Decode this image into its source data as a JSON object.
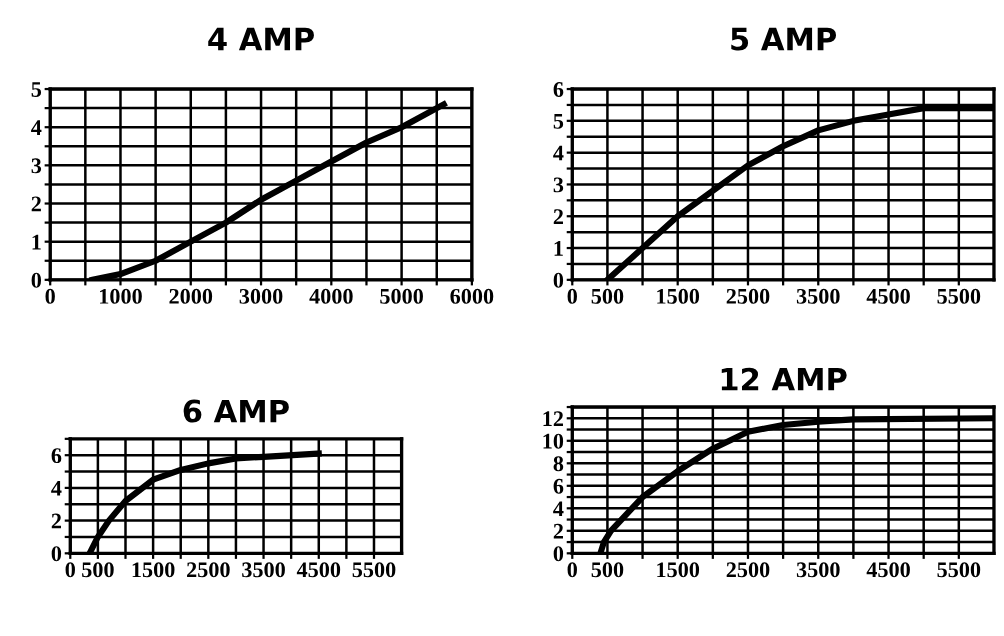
{
  "chart_data": [
    {
      "type": "line",
      "title": "4 AMP",
      "grid": true,
      "xlim": [
        0,
        6000
      ],
      "ylim": [
        0,
        5
      ],
      "xticks": [
        0,
        {
          "value": 500,
          "label": null
        },
        1000,
        {
          "value": 1500,
          "label": null
        },
        2000,
        {
          "value": 2500,
          "label": null
        },
        3000,
        {
          "value": 3500,
          "label": null
        },
        4000,
        {
          "value": 4500,
          "label": null
        },
        5000,
        {
          "value": 5500,
          "label": null
        },
        6000
      ],
      "yticks": [
        0,
        {
          "value": 0.5,
          "label": null
        },
        1,
        {
          "value": 1.5,
          "label": null
        },
        2,
        {
          "value": 2.5,
          "label": null
        },
        3,
        {
          "value": 3.5,
          "label": null
        },
        4,
        {
          "value": 4.5,
          "label": null
        },
        5
      ],
      "series": [
        {
          "color": "#000000",
          "x": [
            600,
            1000,
            1500,
            2000,
            2500,
            3000,
            3500,
            4000,
            4500,
            5000,
            5600
          ],
          "values": [
            0,
            0.15,
            0.5,
            1.0,
            1.5,
            2.1,
            2.6,
            3.1,
            3.6,
            4.0,
            4.6
          ]
        }
      ]
    },
    {
      "type": "line",
      "title": "5 AMP",
      "grid": true,
      "xlim": [
        0,
        6000
      ],
      "ylim": [
        0,
        6
      ],
      "xticks": [
        0,
        500,
        {
          "value": 1000,
          "label": null
        },
        1500,
        {
          "value": 2000,
          "label": null
        },
        2500,
        {
          "value": 3000,
          "label": null
        },
        3500,
        {
          "value": 4000,
          "label": null
        },
        4500,
        {
          "value": 5000,
          "label": null
        },
        5500
      ],
      "yticks": [
        0,
        {
          "value": 0.5,
          "label": null
        },
        1,
        {
          "value": 1.5,
          "label": null
        },
        2,
        {
          "value": 2.5,
          "label": null
        },
        3,
        {
          "value": 3.5,
          "label": null
        },
        4,
        {
          "value": 4.5,
          "label": null
        },
        5,
        {
          "value": 5.5,
          "label": null
        },
        6
      ],
      "series": [
        {
          "color": "#000000",
          "x": [
            500,
            1000,
            1500,
            2000,
            2500,
            3000,
            3500,
            4000,
            4500,
            5000,
            6000
          ],
          "values": [
            0,
            1,
            2,
            2.8,
            3.6,
            4.2,
            4.7,
            5.0,
            5.2,
            5.4,
            5.4
          ]
        }
      ]
    },
    {
      "type": "line",
      "title": "6 AMP",
      "grid": true,
      "xlim": [
        0,
        6000
      ],
      "ylim": [
        0,
        7
      ],
      "xticks": [
        0,
        500,
        {
          "value": 1000,
          "label": null
        },
        1500,
        {
          "value": 2000,
          "label": null
        },
        2500,
        {
          "value": 3000,
          "label": null
        },
        3500,
        {
          "value": 4000,
          "label": null
        },
        4500,
        {
          "value": 5000,
          "label": null
        },
        5500
      ],
      "yticks": [
        0,
        {
          "value": 1,
          "label": null
        },
        2,
        {
          "value": 3,
          "label": null
        },
        4,
        {
          "value": 5,
          "label": null
        },
        6,
        {
          "value": 7,
          "label": null
        }
      ],
      "series": [
        {
          "color": "#000000",
          "x": [
            350,
            500,
            700,
            1000,
            1500,
            2000,
            2500,
            3000,
            3500,
            4500
          ],
          "values": [
            0,
            1,
            2,
            3.2,
            4.5,
            5.1,
            5.5,
            5.8,
            5.9,
            6.1
          ]
        }
      ]
    },
    {
      "type": "line",
      "title": "12 AMP",
      "grid": true,
      "xlim": [
        0,
        6000
      ],
      "ylim": [
        0,
        13
      ],
      "xticks": [
        0,
        500,
        {
          "value": 1000,
          "label": null
        },
        1500,
        {
          "value": 2000,
          "label": null
        },
        2500,
        {
          "value": 3000,
          "label": null
        },
        3500,
        {
          "value": 4000,
          "label": null
        },
        4500,
        {
          "value": 5000,
          "label": null
        },
        5500
      ],
      "yticks": [
        0,
        {
          "value": 1,
          "label": null
        },
        2,
        {
          "value": 3,
          "label": null
        },
        4,
        {
          "value": 5,
          "label": null
        },
        6,
        {
          "value": 7,
          "label": null
        },
        8,
        {
          "value": 9,
          "label": null
        },
        10,
        {
          "value": 11,
          "label": null
        },
        12,
        {
          "value": 13,
          "label": null
        }
      ],
      "series": [
        {
          "color": "#000000",
          "x": [
            400,
            450,
            550,
            700,
            1000,
            1500,
            2000,
            2500,
            3000,
            3500,
            4000,
            6000
          ],
          "values": [
            0,
            1,
            2,
            3,
            5,
            7.3,
            9.3,
            10.8,
            11.4,
            11.7,
            11.9,
            12
          ]
        }
      ]
    }
  ]
}
